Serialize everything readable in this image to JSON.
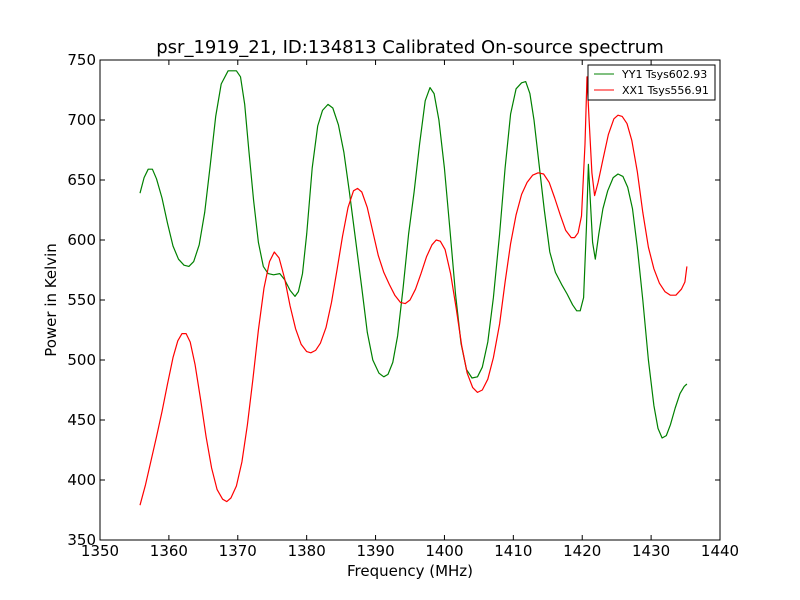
{
  "chart_data": {
    "type": "line",
    "title": "psr_1919_21, ID:134813 Calibrated On-source spectrum",
    "xlabel": "Frequency (MHz)",
    "ylabel": "Power in Kelvin",
    "xlim": [
      1350,
      1440
    ],
    "ylim": [
      350,
      750
    ],
    "xticks": [
      1350,
      1360,
      1370,
      1380,
      1390,
      1400,
      1410,
      1420,
      1430,
      1440
    ],
    "yticks": [
      350,
      400,
      450,
      500,
      550,
      600,
      650,
      700,
      750
    ],
    "grid": false,
    "legend_position": "top-right",
    "series": [
      {
        "name": "YY1 Tsys602.93",
        "color": "#008000",
        "points": [
          [
            1355.8,
            639
          ],
          [
            1356.4,
            652
          ],
          [
            1357,
            659
          ],
          [
            1357.6,
            659
          ],
          [
            1358.2,
            651
          ],
          [
            1359,
            635
          ],
          [
            1359.8,
            614
          ],
          [
            1360.6,
            595
          ],
          [
            1361.4,
            584
          ],
          [
            1362.2,
            579
          ],
          [
            1362.9,
            578
          ],
          [
            1363.6,
            582
          ],
          [
            1364.4,
            596
          ],
          [
            1365.2,
            623
          ],
          [
            1366,
            662
          ],
          [
            1366.8,
            703
          ],
          [
            1367.6,
            730
          ],
          [
            1368.6,
            741
          ],
          [
            1369.8,
            741
          ],
          [
            1370.4,
            736
          ],
          [
            1371,
            713
          ],
          [
            1371.6,
            675
          ],
          [
            1372.3,
            633
          ],
          [
            1373,
            598
          ],
          [
            1373.7,
            578
          ],
          [
            1374.4,
            572
          ],
          [
            1375.2,
            571
          ],
          [
            1376.1,
            572
          ],
          [
            1376.8,
            567
          ],
          [
            1377.6,
            558
          ],
          [
            1378.3,
            553
          ],
          [
            1378.8,
            557
          ],
          [
            1379.4,
            572
          ],
          [
            1380,
            605
          ],
          [
            1380.8,
            660
          ],
          [
            1381.6,
            695
          ],
          [
            1382.3,
            708
          ],
          [
            1383.1,
            713
          ],
          [
            1383.8,
            710
          ],
          [
            1384.6,
            696
          ],
          [
            1385.4,
            673
          ],
          [
            1386.2,
            640
          ],
          [
            1387.1,
            600
          ],
          [
            1388,
            560
          ],
          [
            1388.8,
            523
          ],
          [
            1389.6,
            500
          ],
          [
            1390.5,
            489
          ],
          [
            1391.2,
            486
          ],
          [
            1391.8,
            488
          ],
          [
            1392.5,
            498
          ],
          [
            1393.2,
            520
          ],
          [
            1394,
            560
          ],
          [
            1394.8,
            605
          ],
          [
            1395.6,
            640
          ],
          [
            1396.4,
            680
          ],
          [
            1397.2,
            716
          ],
          [
            1397.9,
            727
          ],
          [
            1398.5,
            722
          ],
          [
            1399.2,
            700
          ],
          [
            1400,
            660
          ],
          [
            1400.8,
            608
          ],
          [
            1401.6,
            555
          ],
          [
            1402.4,
            514
          ],
          [
            1403.2,
            492
          ],
          [
            1404,
            485
          ],
          [
            1404.8,
            486
          ],
          [
            1405.5,
            494
          ],
          [
            1406.3,
            515
          ],
          [
            1407.1,
            552
          ],
          [
            1408,
            605
          ],
          [
            1408.8,
            660
          ],
          [
            1409.6,
            705
          ],
          [
            1410.4,
            726
          ],
          [
            1411.2,
            731
          ],
          [
            1411.8,
            732
          ],
          [
            1412.4,
            722
          ],
          [
            1413,
            700
          ],
          [
            1413.7,
            665
          ],
          [
            1414.5,
            625
          ],
          [
            1415.3,
            590
          ],
          [
            1416.1,
            573
          ],
          [
            1417,
            563
          ],
          [
            1417.8,
            555
          ],
          [
            1418.6,
            546
          ],
          [
            1419.2,
            541
          ],
          [
            1419.7,
            541
          ],
          [
            1420.2,
            552
          ],
          [
            1420.6,
            610
          ],
          [
            1420.9,
            663
          ],
          [
            1421.2,
            630
          ],
          [
            1421.5,
            598
          ],
          [
            1421.9,
            584
          ],
          [
            1422.4,
            605
          ],
          [
            1423,
            626
          ],
          [
            1423.7,
            641
          ],
          [
            1424.5,
            652
          ],
          [
            1425.2,
            655
          ],
          [
            1425.9,
            653
          ],
          [
            1426.6,
            644
          ],
          [
            1427.3,
            626
          ],
          [
            1428,
            594
          ],
          [
            1428.8,
            550
          ],
          [
            1429.6,
            500
          ],
          [
            1430.4,
            462
          ],
          [
            1431,
            443
          ],
          [
            1431.6,
            435
          ],
          [
            1432.2,
            437
          ],
          [
            1432.8,
            446
          ],
          [
            1433.5,
            460
          ],
          [
            1434.2,
            472
          ],
          [
            1434.8,
            478
          ],
          [
            1435.2,
            480
          ]
        ]
      },
      {
        "name": "XX1 Tsys556.91",
        "color": "#ff0000",
        "points": [
          [
            1355.8,
            379
          ],
          [
            1356.6,
            396
          ],
          [
            1357.4,
            416
          ],
          [
            1358.2,
            436
          ],
          [
            1359,
            457
          ],
          [
            1359.8,
            480
          ],
          [
            1360.6,
            502
          ],
          [
            1361.3,
            516
          ],
          [
            1361.9,
            522
          ],
          [
            1362.5,
            522
          ],
          [
            1363.1,
            515
          ],
          [
            1363.8,
            496
          ],
          [
            1364.6,
            467
          ],
          [
            1365.4,
            436
          ],
          [
            1366.2,
            410
          ],
          [
            1367,
            392
          ],
          [
            1367.8,
            384
          ],
          [
            1368.4,
            382
          ],
          [
            1369,
            385
          ],
          [
            1369.8,
            395
          ],
          [
            1370.6,
            415
          ],
          [
            1371.4,
            446
          ],
          [
            1372.2,
            484
          ],
          [
            1373,
            525
          ],
          [
            1373.8,
            560
          ],
          [
            1374.6,
            582
          ],
          [
            1375.3,
            590
          ],
          [
            1376,
            585
          ],
          [
            1376.8,
            568
          ],
          [
            1377.6,
            545
          ],
          [
            1378.4,
            526
          ],
          [
            1379.2,
            513
          ],
          [
            1380,
            507
          ],
          [
            1380.6,
            506
          ],
          [
            1381.3,
            508
          ],
          [
            1382,
            514
          ],
          [
            1382.8,
            527
          ],
          [
            1383.6,
            548
          ],
          [
            1384.4,
            575
          ],
          [
            1385.2,
            603
          ],
          [
            1386,
            627
          ],
          [
            1386.8,
            641
          ],
          [
            1387.4,
            643
          ],
          [
            1388,
            640
          ],
          [
            1388.8,
            627
          ],
          [
            1389.6,
            607
          ],
          [
            1390.4,
            587
          ],
          [
            1391.2,
            573
          ],
          [
            1392,
            563
          ],
          [
            1392.8,
            554
          ],
          [
            1393.6,
            548
          ],
          [
            1394.3,
            547
          ],
          [
            1395,
            550
          ],
          [
            1395.8,
            559
          ],
          [
            1396.6,
            572
          ],
          [
            1397.4,
            586
          ],
          [
            1398.2,
            596
          ],
          [
            1398.8,
            600
          ],
          [
            1399.4,
            599
          ],
          [
            1400.1,
            592
          ],
          [
            1400.9,
            572
          ],
          [
            1401.7,
            543
          ],
          [
            1402.5,
            512
          ],
          [
            1403.3,
            489
          ],
          [
            1404.1,
            477
          ],
          [
            1404.8,
            473
          ],
          [
            1405.5,
            475
          ],
          [
            1406.3,
            484
          ],
          [
            1407.1,
            502
          ],
          [
            1408,
            530
          ],
          [
            1408.8,
            565
          ],
          [
            1409.6,
            597
          ],
          [
            1410.4,
            621
          ],
          [
            1411.2,
            638
          ],
          [
            1412,
            648
          ],
          [
            1412.8,
            654
          ],
          [
            1413.6,
            656
          ],
          [
            1414.4,
            655
          ],
          [
            1415.2,
            648
          ],
          [
            1416,
            635
          ],
          [
            1416.8,
            621
          ],
          [
            1417.6,
            608
          ],
          [
            1418.4,
            602
          ],
          [
            1418.9,
            602
          ],
          [
            1419.4,
            606
          ],
          [
            1419.9,
            620
          ],
          [
            1420.4,
            680
          ],
          [
            1420.7,
            736
          ],
          [
            1421,
            700
          ],
          [
            1421.4,
            656
          ],
          [
            1421.8,
            637
          ],
          [
            1422.3,
            648
          ],
          [
            1423,
            667
          ],
          [
            1423.8,
            688
          ],
          [
            1424.6,
            701
          ],
          [
            1425.2,
            704
          ],
          [
            1425.8,
            703
          ],
          [
            1426.5,
            697
          ],
          [
            1427.2,
            683
          ],
          [
            1428,
            657
          ],
          [
            1428.8,
            623
          ],
          [
            1429.6,
            594
          ],
          [
            1430.4,
            576
          ],
          [
            1431.2,
            564
          ],
          [
            1432,
            557
          ],
          [
            1432.8,
            554
          ],
          [
            1433.6,
            554
          ],
          [
            1434.4,
            559
          ],
          [
            1434.9,
            565
          ],
          [
            1435.2,
            578
          ]
        ]
      }
    ]
  }
}
